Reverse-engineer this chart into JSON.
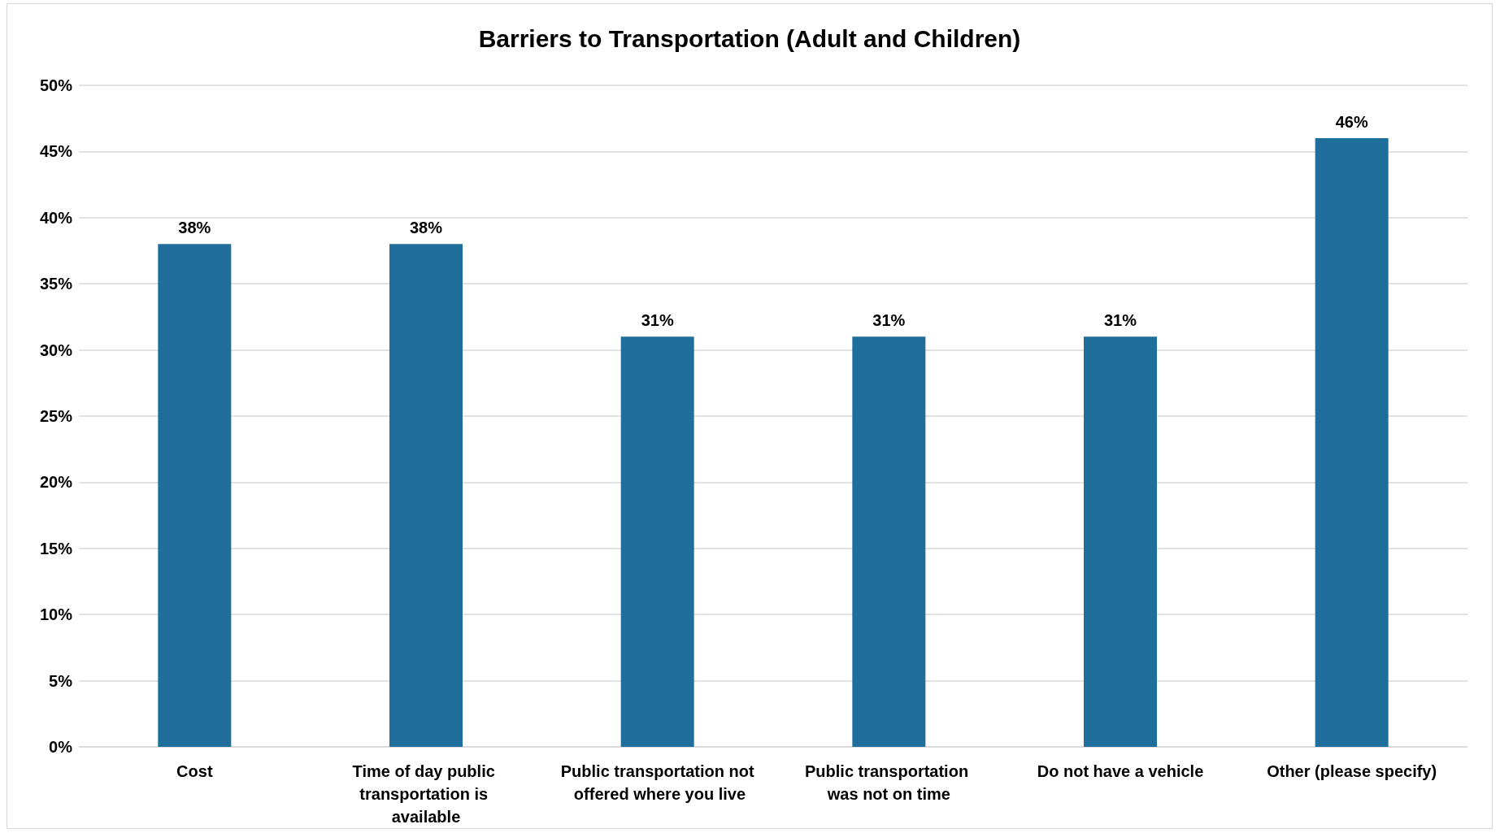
{
  "chart_data": {
    "type": "bar",
    "title": "Barriers to Transportation (Adult and Children)",
    "categories": [
      "Cost",
      "Time of day public transportation is available",
      "Public transportation not offered where you live",
      "Public transportation was not on time",
      "Do not have a vehicle",
      "Other (please specify)"
    ],
    "values": [
      38,
      38,
      31,
      31,
      31,
      46
    ],
    "value_labels": [
      "38%",
      "38%",
      "31%",
      "31%",
      "31%",
      "46%"
    ],
    "color": "#1f6e9c",
    "ylim": [
      0,
      50
    ],
    "yticks": [
      {
        "value": 0,
        "label": "0%"
      },
      {
        "value": 5,
        "label": "5%"
      },
      {
        "value": 10,
        "label": "10%"
      },
      {
        "value": 15,
        "label": "15%"
      },
      {
        "value": 20,
        "label": "20%"
      },
      {
        "value": 25,
        "label": "25%"
      },
      {
        "value": 30,
        "label": "30%"
      },
      {
        "value": 35,
        "label": "35%"
      },
      {
        "value": 40,
        "label": "40%"
      },
      {
        "value": 45,
        "label": "45%"
      },
      {
        "value": 50,
        "label": "50%"
      }
    ],
    "grid": "y"
  }
}
